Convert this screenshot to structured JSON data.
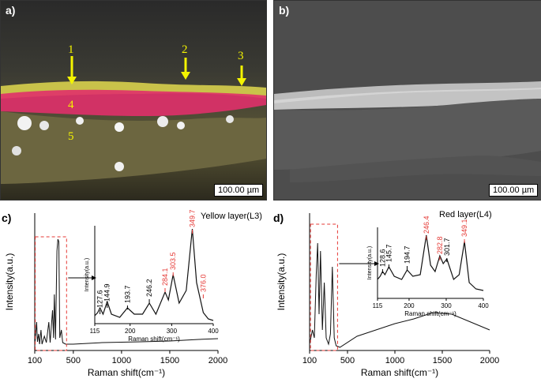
{
  "panels": {
    "a": {
      "label": "a)",
      "scalebar": "100.00 µm",
      "markers": [
        {
          "num": "1"
        },
        {
          "num": "2"
        },
        {
          "num": "3"
        },
        {
          "num": "4"
        },
        {
          "num": "5"
        }
      ]
    },
    "b": {
      "label": "b)",
      "scalebar": "100.00 µm"
    },
    "c": {
      "label": "c)",
      "layer_title": "Yellow layer(L3)"
    },
    "d": {
      "label": "d)",
      "layer_title": "Red layer(L4)"
    }
  },
  "chart_data": [
    {
      "id": "c-main",
      "type": "line",
      "xlabel": "Raman shift(cm⁻¹)",
      "ylabel": "Intensity(a.u.)",
      "xlim": [
        100,
        2000
      ],
      "xticks": [
        100,
        500,
        1000,
        1500,
        2000
      ],
      "xtick_labels": [
        "100",
        "500",
        "1000",
        "1500",
        "2000"
      ],
      "inset": {
        "xlabel": "Raman shift(cm⁻¹)",
        "ylabel": "Intensity(a.u.)",
        "xlim": [
          115,
          400
        ],
        "xticks": [
          115,
          200,
          300,
          400
        ],
        "xtick_labels": [
          "115",
          "200",
          "300",
          "400"
        ],
        "peaks": [
          {
            "x": 127.6,
            "label": "127.6",
            "color": "#000000"
          },
          {
            "x": 144.9,
            "label": "144.9",
            "color": "#000000"
          },
          {
            "x": 193.7,
            "label": "193.7",
            "color": "#000000"
          },
          {
            "x": 246.2,
            "label": "246.2",
            "color": "#000000"
          },
          {
            "x": 284.1,
            "label": "284.1",
            "color": "#e53935"
          },
          {
            "x": 303.5,
            "label": "303.5",
            "color": "#e53935"
          },
          {
            "x": 349.7,
            "label": "349.7",
            "color": "#e53935"
          },
          {
            "x": 376.0,
            "label": "376.0",
            "color": "#e53935"
          }
        ]
      }
    },
    {
      "id": "d-main",
      "type": "line",
      "xlabel": "Raman shift(cm⁻¹)",
      "ylabel": "Intensity(a.u.)",
      "xlim": [
        100,
        2000
      ],
      "xticks": [
        100,
        500,
        1000,
        1500,
        2000
      ],
      "xtick_labels": [
        "100",
        "500",
        "1000",
        "1500",
        "2000"
      ],
      "inset": {
        "xlabel": "Raman shift(cm⁻¹)",
        "ylabel": "Intensity(a.u.)",
        "xlim": [
          115,
          400
        ],
        "xticks": [
          115,
          200,
          300,
          400
        ],
        "xtick_labels": [
          "115",
          "200",
          "300",
          "400"
        ],
        "peaks": [
          {
            "x": 128.6,
            "label": "128.6",
            "color": "#000000"
          },
          {
            "x": 145.7,
            "label": "145.7",
            "color": "#000000"
          },
          {
            "x": 194.7,
            "label": "194.7",
            "color": "#000000"
          },
          {
            "x": 246.4,
            "label": "246.4",
            "color": "#e53935"
          },
          {
            "x": 282.8,
            "label": "282.8",
            "color": "#e53935"
          },
          {
            "x": 301.7,
            "label": "301.7",
            "color": "#000000"
          },
          {
            "x": 349.1,
            "label": "349.1",
            "color": "#e53935"
          }
        ]
      }
    }
  ]
}
